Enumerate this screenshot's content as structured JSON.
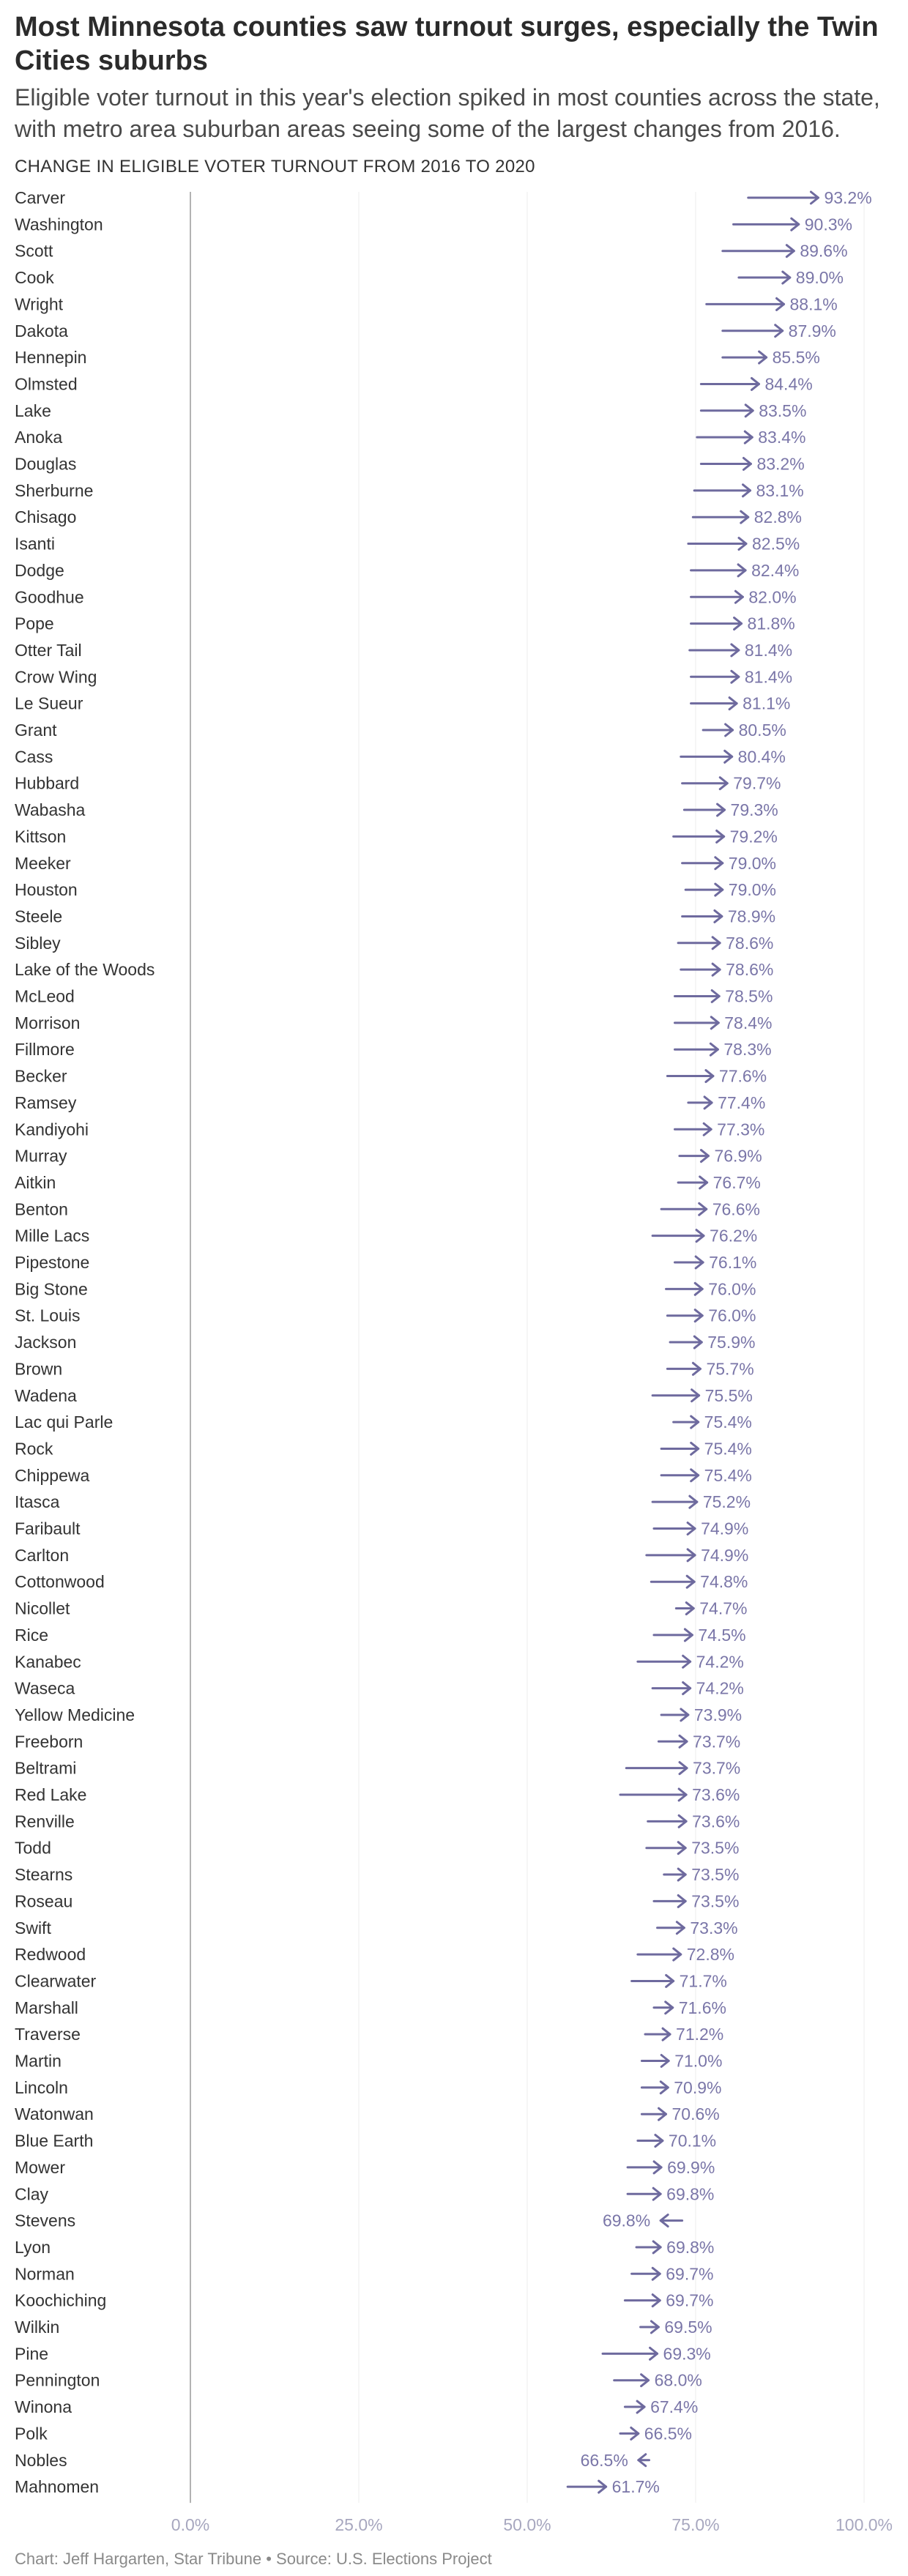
{
  "title": "Most Minnesota counties saw turnout surges, especially the Twin Cities suburbs",
  "subtitle": "Eligible voter turnout in this year's election spiked in most counties across the state, with metro area suburban areas seeing some of the largest changes from 2016.",
  "source": "Chart: Jeff Hargarten, Star Tribune • Source: U.S. Elections Project",
  "colors": {
    "arrow": "#6e6a9e",
    "label": "#7a76a8",
    "axis_text": "#a7a7bf",
    "grid": "#ececec",
    "zero_line": "#9a9a9a",
    "county_text": "#333333"
  },
  "chart_data": {
    "type": "arrow",
    "title": "CHANGE IN ELIGIBLE VOTER TURNOUT FROM 2016 TO 2020",
    "xlim": [
      0,
      100
    ],
    "x_ticks": [
      "0.0%",
      "25.0%",
      "50.0%",
      "75.0%",
      "100.0%"
    ],
    "x_tick_values": [
      0,
      25,
      50,
      75,
      100
    ],
    "grid": true,
    "value_suffix": "%",
    "rows": [
      {
        "county": "Carver",
        "from": 82.8,
        "to": 93.2,
        "label": "93.2%"
      },
      {
        "county": "Washington",
        "from": 80.6,
        "to": 90.3,
        "label": "90.3%"
      },
      {
        "county": "Scott",
        "from": 79.0,
        "to": 89.6,
        "label": "89.6%"
      },
      {
        "county": "Cook",
        "from": 81.4,
        "to": 89.0,
        "label": "89.0%"
      },
      {
        "county": "Wright",
        "from": 76.6,
        "to": 88.1,
        "label": "88.1%"
      },
      {
        "county": "Dakota",
        "from": 79.0,
        "to": 87.9,
        "label": "87.9%"
      },
      {
        "county": "Hennepin",
        "from": 79.0,
        "to": 85.5,
        "label": "85.5%"
      },
      {
        "county": "Olmsted",
        "from": 75.8,
        "to": 84.4,
        "label": "84.4%"
      },
      {
        "county": "Lake",
        "from": 75.8,
        "to": 83.5,
        "label": "83.5%"
      },
      {
        "county": "Anoka",
        "from": 75.2,
        "to": 83.4,
        "label": "83.4%"
      },
      {
        "county": "Douglas",
        "from": 75.8,
        "to": 83.2,
        "label": "83.2%"
      },
      {
        "county": "Sherburne",
        "from": 74.8,
        "to": 83.1,
        "label": "83.1%"
      },
      {
        "county": "Chisago",
        "from": 74.6,
        "to": 82.8,
        "label": "82.8%"
      },
      {
        "county": "Isanti",
        "from": 73.9,
        "to": 82.5,
        "label": "82.5%"
      },
      {
        "county": "Dodge",
        "from": 74.3,
        "to": 82.4,
        "label": "82.4%"
      },
      {
        "county": "Goodhue",
        "from": 74.3,
        "to": 82.0,
        "label": "82.0%"
      },
      {
        "county": "Pope",
        "from": 74.3,
        "to": 81.8,
        "label": "81.8%"
      },
      {
        "county": "Otter Tail",
        "from": 74.1,
        "to": 81.4,
        "label": "81.4%"
      },
      {
        "county": "Crow Wing",
        "from": 74.3,
        "to": 81.4,
        "label": "81.4%"
      },
      {
        "county": "Le Sueur",
        "from": 74.3,
        "to": 81.1,
        "label": "81.1%"
      },
      {
        "county": "Grant",
        "from": 76.1,
        "to": 80.5,
        "label": "80.5%"
      },
      {
        "county": "Cass",
        "from": 72.8,
        "to": 80.4,
        "label": "80.4%"
      },
      {
        "county": "Hubbard",
        "from": 73.0,
        "to": 79.7,
        "label": "79.7%"
      },
      {
        "county": "Wabasha",
        "from": 73.3,
        "to": 79.3,
        "label": "79.3%"
      },
      {
        "county": "Kittson",
        "from": 71.7,
        "to": 79.2,
        "label": "79.2%"
      },
      {
        "county": "Meeker",
        "from": 73.0,
        "to": 79.0,
        "label": "79.0%"
      },
      {
        "county": "Houston",
        "from": 73.5,
        "to": 79.0,
        "label": "79.0%"
      },
      {
        "county": "Steele",
        "from": 73.0,
        "to": 78.9,
        "label": "78.9%"
      },
      {
        "county": "Sibley",
        "from": 72.4,
        "to": 78.6,
        "label": "78.6%"
      },
      {
        "county": "Lake of the Woods",
        "from": 72.8,
        "to": 78.6,
        "label": "78.6%"
      },
      {
        "county": "McLeod",
        "from": 71.9,
        "to": 78.5,
        "label": "78.5%"
      },
      {
        "county": "Morrison",
        "from": 71.9,
        "to": 78.4,
        "label": "78.4%"
      },
      {
        "county": "Fillmore",
        "from": 71.9,
        "to": 78.3,
        "label": "78.3%"
      },
      {
        "county": "Becker",
        "from": 70.8,
        "to": 77.6,
        "label": "77.6%"
      },
      {
        "county": "Ramsey",
        "from": 73.9,
        "to": 77.4,
        "label": "77.4%"
      },
      {
        "county": "Kandiyohi",
        "from": 71.9,
        "to": 77.3,
        "label": "77.3%"
      },
      {
        "county": "Murray",
        "from": 72.6,
        "to": 76.9,
        "label": "76.9%"
      },
      {
        "county": "Aitkin",
        "from": 72.4,
        "to": 76.7,
        "label": "76.7%"
      },
      {
        "county": "Benton",
        "from": 69.9,
        "to": 76.6,
        "label": "76.6%"
      },
      {
        "county": "Mille Lacs",
        "from": 68.6,
        "to": 76.2,
        "label": "76.2%"
      },
      {
        "county": "Pipestone",
        "from": 71.9,
        "to": 76.1,
        "label": "76.1%"
      },
      {
        "county": "Big Stone",
        "from": 70.6,
        "to": 76.0,
        "label": "76.0%"
      },
      {
        "county": "St. Louis",
        "from": 70.8,
        "to": 76.0,
        "label": "76.0%"
      },
      {
        "county": "Jackson",
        "from": 71.2,
        "to": 75.9,
        "label": "75.9%"
      },
      {
        "county": "Brown",
        "from": 70.8,
        "to": 75.7,
        "label": "75.7%"
      },
      {
        "county": "Wadena",
        "from": 68.6,
        "to": 75.5,
        "label": "75.5%"
      },
      {
        "county": "Lac qui Parle",
        "from": 71.7,
        "to": 75.4,
        "label": "75.4%"
      },
      {
        "county": "Rock",
        "from": 69.9,
        "to": 75.4,
        "label": "75.4%"
      },
      {
        "county": "Chippewa",
        "from": 69.9,
        "to": 75.4,
        "label": "75.4%"
      },
      {
        "county": "Itasca",
        "from": 68.6,
        "to": 75.2,
        "label": "75.2%"
      },
      {
        "county": "Faribault",
        "from": 68.8,
        "to": 74.9,
        "label": "74.9%"
      },
      {
        "county": "Carlton",
        "from": 67.7,
        "to": 74.9,
        "label": "74.9%"
      },
      {
        "county": "Cottonwood",
        "from": 68.4,
        "to": 74.8,
        "label": "74.8%"
      },
      {
        "county": "Nicollet",
        "from": 72.1,
        "to": 74.7,
        "label": "74.7%"
      },
      {
        "county": "Rice",
        "from": 68.8,
        "to": 74.5,
        "label": "74.5%"
      },
      {
        "county": "Kanabec",
        "from": 66.4,
        "to": 74.2,
        "label": "74.2%"
      },
      {
        "county": "Waseca",
        "from": 68.6,
        "to": 74.2,
        "label": "74.2%"
      },
      {
        "county": "Yellow Medicine",
        "from": 69.9,
        "to": 73.9,
        "label": "73.9%"
      },
      {
        "county": "Freeborn",
        "from": 69.5,
        "to": 73.7,
        "label": "73.7%"
      },
      {
        "county": "Beltrami",
        "from": 64.7,
        "to": 73.7,
        "label": "73.7%"
      },
      {
        "county": "Red Lake",
        "from": 63.8,
        "to": 73.6,
        "label": "73.6%"
      },
      {
        "county": "Renville",
        "from": 67.9,
        "to": 73.6,
        "label": "73.6%"
      },
      {
        "county": "Todd",
        "from": 67.7,
        "to": 73.5,
        "label": "73.5%"
      },
      {
        "county": "Stearns",
        "from": 70.3,
        "to": 73.5,
        "label": "73.5%"
      },
      {
        "county": "Roseau",
        "from": 68.8,
        "to": 73.5,
        "label": "73.5%"
      },
      {
        "county": "Swift",
        "from": 69.3,
        "to": 73.3,
        "label": "73.3%"
      },
      {
        "county": "Redwood",
        "from": 66.4,
        "to": 72.8,
        "label": "72.8%"
      },
      {
        "county": "Clearwater",
        "from": 65.5,
        "to": 71.7,
        "label": "71.7%"
      },
      {
        "county": "Marshall",
        "from": 68.8,
        "to": 71.6,
        "label": "71.6%"
      },
      {
        "county": "Traverse",
        "from": 67.5,
        "to": 71.2,
        "label": "71.2%"
      },
      {
        "county": "Martin",
        "from": 67.0,
        "to": 71.0,
        "label": "71.0%"
      },
      {
        "county": "Lincoln",
        "from": 67.0,
        "to": 70.9,
        "label": "70.9%"
      },
      {
        "county": "Watonwan",
        "from": 67.0,
        "to": 70.6,
        "label": "70.6%"
      },
      {
        "county": "Blue Earth",
        "from": 66.4,
        "to": 70.1,
        "label": "70.1%"
      },
      {
        "county": "Mower",
        "from": 64.9,
        "to": 69.9,
        "label": "69.9%"
      },
      {
        "county": "Clay",
        "from": 64.9,
        "to": 69.8,
        "label": "69.8%"
      },
      {
        "county": "Stevens",
        "from": 73.0,
        "to": 69.8,
        "label": "69.8%"
      },
      {
        "county": "Lyon",
        "from": 66.2,
        "to": 69.8,
        "label": "69.8%"
      },
      {
        "county": "Norman",
        "from": 65.5,
        "to": 69.7,
        "label": "69.7%"
      },
      {
        "county": "Koochiching",
        "from": 64.5,
        "to": 69.7,
        "label": "69.7%"
      },
      {
        "county": "Wilkin",
        "from": 66.8,
        "to": 69.5,
        "label": "69.5%"
      },
      {
        "county": "Pine",
        "from": 61.2,
        "to": 69.3,
        "label": "69.3%"
      },
      {
        "county": "Pennington",
        "from": 62.9,
        "to": 68.0,
        "label": "68.0%"
      },
      {
        "county": "Winona",
        "from": 64.5,
        "to": 67.4,
        "label": "67.4%"
      },
      {
        "county": "Polk",
        "from": 63.8,
        "to": 66.5,
        "label": "66.5%"
      },
      {
        "county": "Nobles",
        "from": 68.1,
        "to": 66.5,
        "label": "66.5%"
      },
      {
        "county": "Mahnomen",
        "from": 56.0,
        "to": 61.7,
        "label": "61.7%"
      }
    ]
  }
}
